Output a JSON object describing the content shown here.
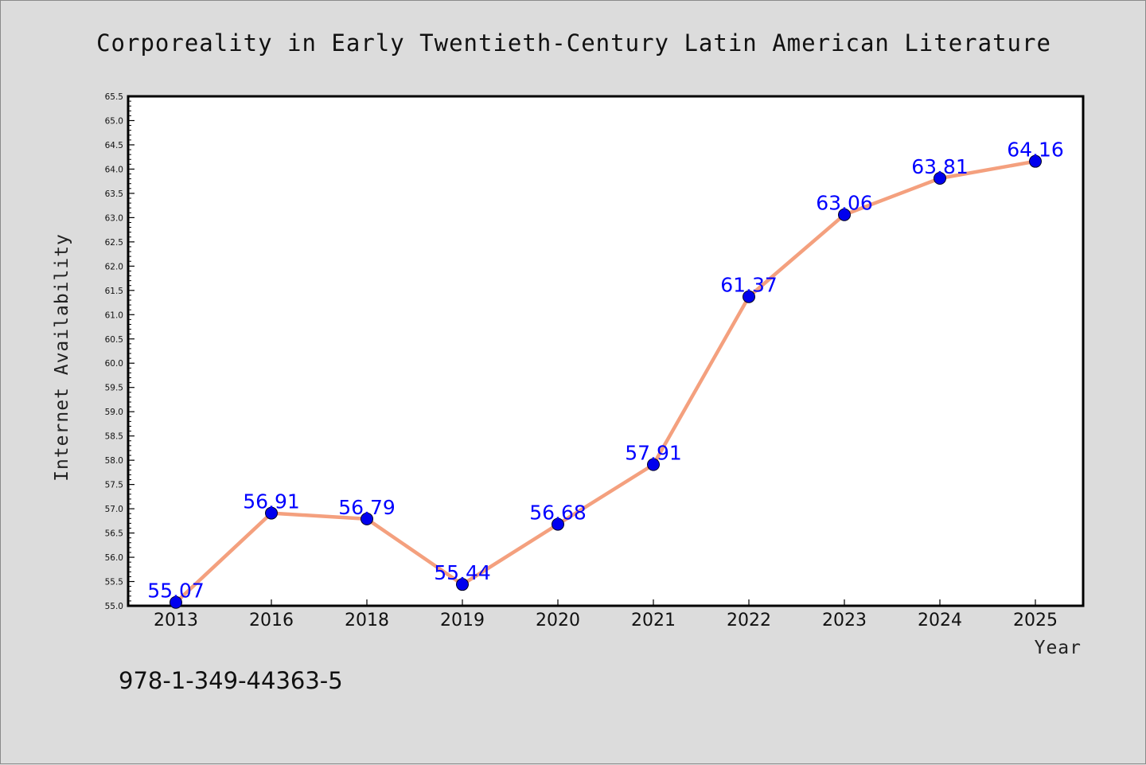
{
  "isbn": "978-1-349-44363-5",
  "chart_data": {
    "type": "line",
    "title": "Corporeality in Early Twentieth-Century Latin American Literature",
    "xlabel": "Year",
    "ylabel": "Internet Availability",
    "categories": [
      "2013",
      "2016",
      "2018",
      "2019",
      "2020",
      "2021",
      "2022",
      "2023",
      "2024",
      "2025"
    ],
    "series": [
      {
        "values": [
          55.07,
          56.91,
          56.79,
          55.44,
          56.68,
          57.91,
          61.37,
          63.06,
          63.81,
          64.16
        ],
        "data_labels": [
          "55.07",
          "56.91",
          "56.79",
          "55.44",
          "56.68",
          "57.91",
          "61.37",
          "63.06",
          "63.81",
          "64.16"
        ],
        "line_color": "#f4a07e",
        "marker_color": "#0000ee"
      }
    ],
    "ylim": [
      55.0,
      65.5
    ],
    "yticks": [
      "55.0",
      "55.5",
      "56.0",
      "56.5",
      "57.0",
      "57.5",
      "58.0",
      "58.5",
      "59.0",
      "59.5",
      "60.0",
      "60.5",
      "61.0",
      "61.5",
      "62.0",
      "62.5",
      "63.0",
      "63.5",
      "64.0",
      "64.5",
      "65.0",
      "65.5"
    ],
    "grid": false,
    "legend": "none"
  }
}
